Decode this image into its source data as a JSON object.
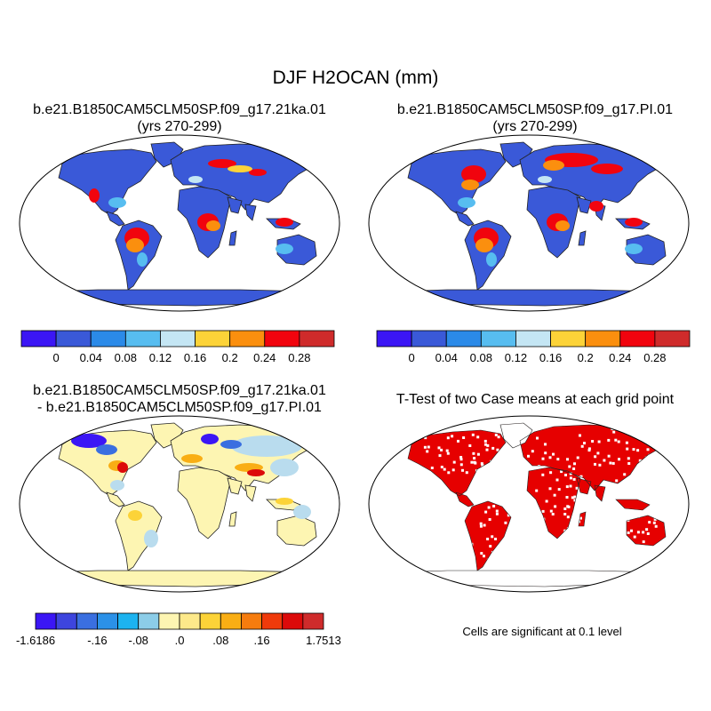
{
  "figure": {
    "title": "DJF H2OCAN (mm)"
  },
  "panels": {
    "top_left": {
      "title_line1": "b.e21.B1850CAM5CLM50SP.f09_g17.21ka.01",
      "title_line2": "(yrs 270-299)"
    },
    "top_right": {
      "title_line1": "b.e21.B1850CAM5CLM50SP.f09_g17.PI.01",
      "title_line2": "(yrs 270-299)"
    },
    "bottom_left": {
      "title_line1": "b.e21.B1850CAM5CLM50SP.f09_g17.21ka.01",
      "title_line2": "- b.e21.B1850CAM5CLM50SP.f09_g17.PI.01"
    },
    "bottom_right": {
      "title_line1": "T-Test of two Case means at each grid point",
      "note": "Cells are significant at 0.1 level"
    }
  },
  "colorbars": {
    "abs": {
      "colors": [
        "#3b16f5",
        "#3a59d8",
        "#2b8ae8",
        "#57bdf0",
        "#c4e6f4",
        "#fcd338",
        "#fb8f0e",
        "#f1040e",
        "#cf2b2b"
      ],
      "labels": [
        "0",
        "0.04",
        "0.08",
        "0.12",
        "0.16",
        "0.2",
        "0.24",
        "0.28"
      ]
    },
    "diff": {
      "colors": [
        "#3b16f5",
        "#3d45de",
        "#3a6fe0",
        "#2b91e8",
        "#1cb3f0",
        "#8ccde8",
        "#fdf5b2",
        "#fde98a",
        "#fcd338",
        "#f9ae14",
        "#f67c0e",
        "#ef3a0b",
        "#dc0a0a",
        "#cf2b2b"
      ],
      "labels": [
        "-1.6186",
        "-.16",
        "-.08",
        ".0",
        ".08",
        ".16",
        "1.7513"
      ]
    }
  },
  "map": {
    "projection": "Robinson",
    "colors": {
      "ocean_fill_abs": "#3a59d8",
      "land_base_abs": "#3a59d8",
      "diff_land_base": "#fdf5b2",
      "diff_cool_light": "#b9dcee",
      "significant": "#e60000"
    }
  }
}
